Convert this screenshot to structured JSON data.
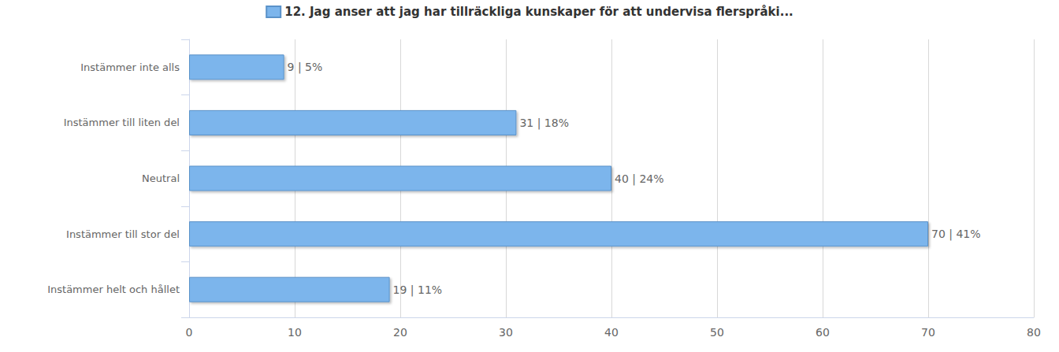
{
  "chart_data": {
    "type": "bar",
    "orientation": "horizontal",
    "categories": [
      "Instämmer inte alls",
      "Instämmer till liten del",
      "Neutral",
      "Instämmer till stor del",
      "Instämmer helt och hållet"
    ],
    "series": [
      {
        "name": "12. Jag anser att jag har tillräckliga kunskaper för att undervisa flerspråki...",
        "color": "#7cb5ec",
        "values": [
          9,
          31,
          40,
          70,
          19
        ],
        "value_labels": [
          "9 | 5%",
          "31 | 18%",
          "40 | 24%",
          "70 | 41%",
          "19 | 11%"
        ]
      }
    ],
    "xlim": [
      0,
      80
    ],
    "xticks": [
      0,
      10,
      20,
      30,
      40,
      50,
      60,
      70,
      80
    ],
    "grid": true,
    "legend": "top",
    "data_labels": true
  }
}
